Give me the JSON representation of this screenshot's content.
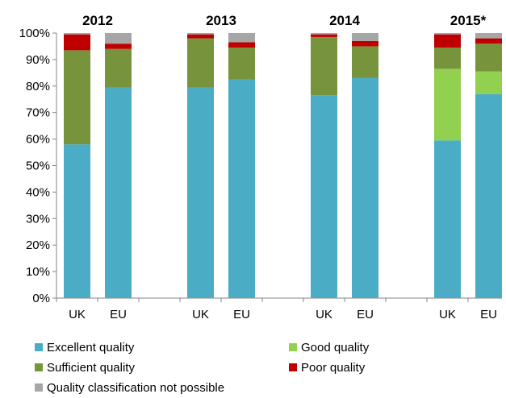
{
  "chart_data": {
    "type": "bar",
    "stacked": true,
    "groups": [
      "2012",
      "2013",
      "2014",
      "2015*"
    ],
    "categories": [
      "UK",
      "EU",
      "UK",
      "EU",
      "UK",
      "EU",
      "UK",
      "EU"
    ],
    "group_of_category": [
      0,
      0,
      1,
      1,
      2,
      2,
      3,
      3
    ],
    "ylim": [
      0,
      100
    ],
    "yticks": [
      "0%",
      "10%",
      "20%",
      "30%",
      "40%",
      "50%",
      "60%",
      "70%",
      "80%",
      "90%",
      "100%"
    ],
    "ytick_values": [
      0,
      10,
      20,
      30,
      40,
      50,
      60,
      70,
      80,
      90,
      100
    ],
    "series": [
      {
        "name": "Excellent quality",
        "color": "#4bacc6",
        "values": [
          58,
          79.5,
          79.5,
          82.5,
          76.5,
          83,
          59.5,
          77
        ]
      },
      {
        "name": "Good quality",
        "color": "#92d050",
        "values": [
          0,
          0,
          0,
          0,
          0,
          0,
          27,
          8.5
        ]
      },
      {
        "name": "Sufficient quality",
        "color": "#77933c",
        "values": [
          35.5,
          14.5,
          18.5,
          12,
          22,
          12,
          8,
          10.5
        ]
      },
      {
        "name": "Poor quality",
        "color": "#c00000",
        "values": [
          6,
          2,
          1.5,
          2,
          1,
          2,
          5,
          2
        ]
      },
      {
        "name": "Quality classification not possible",
        "color": "#a6a6a6",
        "values": [
          0.5,
          4,
          0.5,
          3.5,
          0.5,
          3,
          0.5,
          2
        ]
      }
    ],
    "grid": false,
    "legend": "bottom"
  }
}
